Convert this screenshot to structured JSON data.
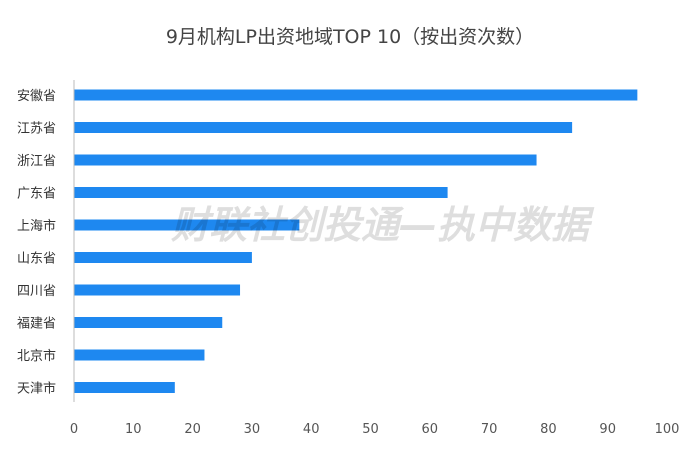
{
  "chart_data": {
    "type": "bar",
    "orientation": "horizontal",
    "title": "9月机构LP出资地域TOP 10（按出资次数）",
    "categories": [
      "安徽省",
      "江苏省",
      "浙江省",
      "广东省",
      "上海市",
      "山东省",
      "四川省",
      "福建省",
      "北京市",
      "天津市"
    ],
    "values": [
      95,
      84,
      78,
      63,
      38,
      30,
      28,
      25,
      22,
      17
    ],
    "xlim": [
      0,
      100
    ],
    "xticks": [
      0,
      10,
      20,
      30,
      40,
      50,
      60,
      70,
      80,
      90,
      100
    ],
    "xlabel": "",
    "ylabel": "",
    "grid": false,
    "bar_color": "#1E88F0",
    "axis_color": "#BBBBBB"
  },
  "watermark": "财联社创投通—执中数据"
}
